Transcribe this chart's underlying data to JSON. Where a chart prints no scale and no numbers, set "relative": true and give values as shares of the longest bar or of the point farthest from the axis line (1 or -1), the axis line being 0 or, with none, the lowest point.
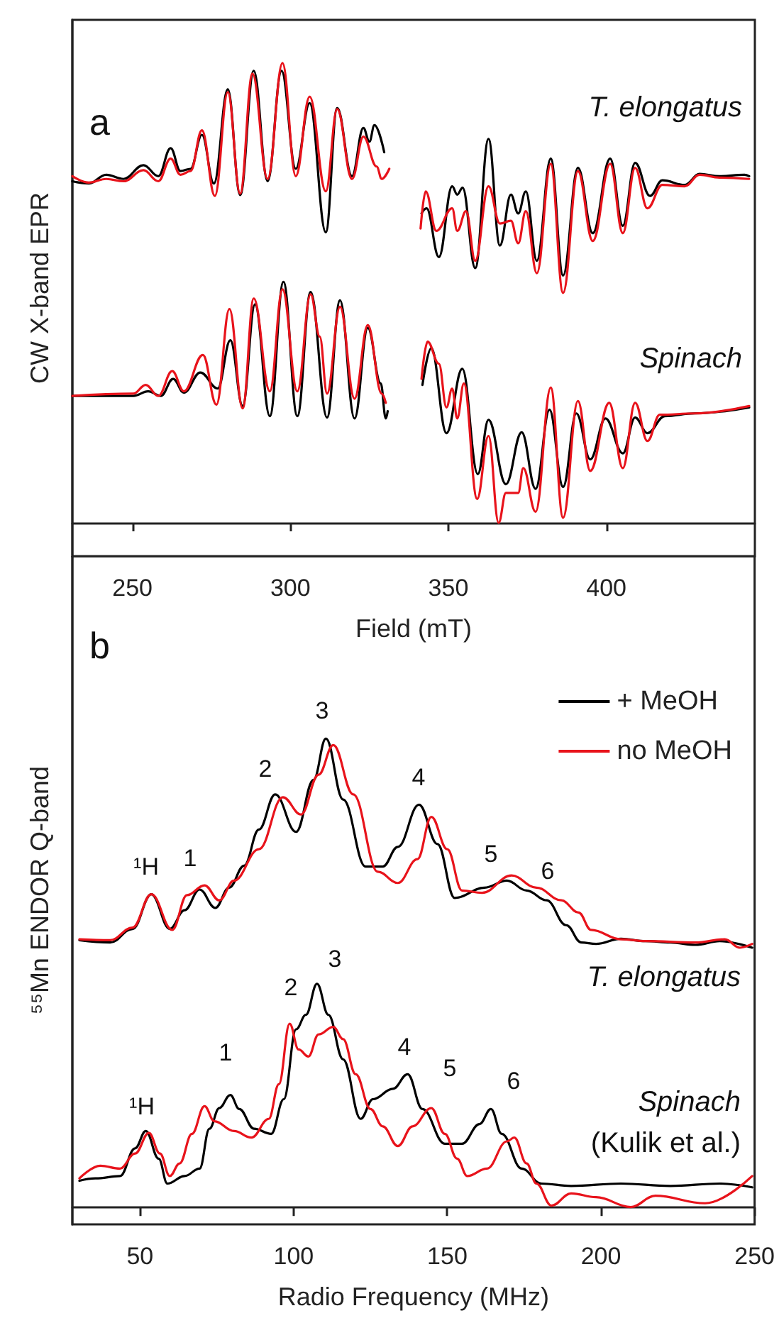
{
  "chart_data": [
    {
      "type": "line",
      "relative": true,
      "xlabel": "Field (mT)",
      "ylabel": "CW X-band EPR",
      "xlim": [
        231,
        447
      ],
      "xticks": [
        250,
        300,
        350,
        400
      ],
      "annotations": [
        "a",
        "T. elongatus",
        "Spinach"
      ],
      "series": [
        {
          "color": "#000000",
          "x": [
            231.0,
            236.2,
            241.7,
            247.2,
            253.5,
            258.2,
            262.1,
            265.2,
            268.4,
            272.0,
            275.8,
            280.2,
            284.1,
            288.4,
            292.8,
            297.2,
            301.7,
            306.1,
            311.2,
            314.8,
            319.5,
            323.1,
            325.0,
            326.6,
            329.7,
            336,
            341.5,
            343.1,
            347.0,
            351.2,
            352.8,
            354.5,
            358.5,
            362.7,
            366.3,
            369.8,
            372.1,
            374.5,
            378.0,
            382.4,
            386.3,
            391.0,
            395.7,
            401.2,
            405.2,
            409.1,
            413.8,
            417.7,
            424.8,
            429.5,
            435.8,
            443.7,
            445.2
          ],
          "values": [
            0.743,
            0.738,
            0.757,
            0.748,
            0.778,
            0.754,
            0.815,
            0.765,
            0.77,
            0.844,
            0.738,
            0.943,
            0.713,
            0.983,
            0.743,
            0.983,
            0.77,
            0.913,
            0.632,
            0.902,
            0.754,
            0.859,
            0.829,
            0.865,
            0.806,
            null,
            0.673,
            0.684,
            0.578,
            0.732,
            0.714,
            0.729,
            0.554,
            0.835,
            0.603,
            0.714,
            0.673,
            0.721,
            0.57,
            0.792,
            0.538,
            0.772,
            0.63,
            0.792,
            0.646,
            0.783,
            0.711,
            0.745,
            0.735,
            0.759,
            0.754,
            0.757,
            0.754
          ]
        },
        {
          "color": "#e8131b",
          "x": [
            231.0,
            236.2,
            241.7,
            247.2,
            253.5,
            258.2,
            262.1,
            265.2,
            268.4,
            272.0,
            276.1,
            280.2,
            284.1,
            288.0,
            292.8,
            297.5,
            301.7,
            306.1,
            311.2,
            314.8,
            319.5,
            323.1,
            327.3,
            328.9,
            331.3,
            336,
            341.2,
            342.8,
            346.2,
            351.2,
            352.8,
            355.6,
            358.5,
            362.7,
            366.3,
            369.8,
            372.1,
            374.5,
            378.0,
            382.4,
            386.3,
            391.0,
            395.7,
            401.2,
            405.2,
            409.1,
            413.0,
            417.7,
            424.8,
            429.5,
            435.8,
            445.2
          ],
          "values": [
            0.754,
            0.74,
            0.748,
            0.743,
            0.767,
            0.743,
            0.792,
            0.757,
            0.765,
            0.854,
            0.711,
            0.937,
            0.716,
            0.977,
            0.748,
            1.0,
            0.754,
            0.927,
            0.721,
            0.9,
            0.748,
            0.84,
            0.775,
            0.748,
            0.77,
            null,
            0.64,
            0.721,
            0.635,
            0.684,
            0.635,
            0.678,
            0.57,
            0.732,
            0.651,
            0.657,
            0.608,
            0.678,
            0.543,
            0.781,
            0.5,
            0.765,
            0.613,
            0.781,
            0.63,
            0.772,
            0.684,
            0.735,
            0.732,
            0.757,
            0.751,
            0.748
          ]
        },
        {
          "color": "#000000",
          "x": [
            231.0,
            250.3,
            255.0,
            259.0,
            262.9,
            266.3,
            271.5,
            277.0,
            281.0,
            284.9,
            288.8,
            293.5,
            297.8,
            302.2,
            306.4,
            311.6,
            315.7,
            320.3,
            324.5,
            328.6,
            330.2,
            330.8,
            336,
            341.8,
            344.6,
            349.4,
            354.4,
            359.3,
            362.7,
            368.2,
            373.2,
            377.6,
            382.0,
            386.3,
            390.5,
            394.9,
            399.7,
            405.2,
            409.1,
            413.0,
            418.5,
            428.0,
            445.2
          ],
          "values": [
            0.276,
            0.276,
            0.286,
            0.276,
            0.313,
            0.283,
            0.327,
            0.292,
            0.397,
            0.254,
            0.475,
            0.232,
            0.524,
            0.232,
            0.502,
            0.229,
            0.484,
            0.227,
            0.424,
            0.303,
            0.227,
            0.243,
            null,
            0.3,
            0.38,
            0.195,
            0.335,
            0.106,
            0.224,
            0.084,
            0.197,
            0.074,
            0.246,
            0.078,
            0.238,
            0.138,
            0.227,
            0.151,
            0.229,
            0.195,
            0.232,
            0.238,
            0.251
          ]
        },
        {
          "color": "#e8131b",
          "x": [
            231.0,
            250.3,
            254.2,
            258.2,
            262.6,
            266.3,
            272.3,
            276.6,
            280.7,
            284.9,
            288.4,
            293.5,
            297.5,
            302.2,
            306.4,
            309.3,
            311.6,
            315.7,
            320.3,
            324.5,
            328.9,
            330.2,
            336,
            341.5,
            343.4,
            347.0,
            349.4,
            351.2,
            352.8,
            354.9,
            359.1,
            362.7,
            365.9,
            368.2,
            372.1,
            373.7,
            377.6,
            382.4,
            386.3,
            391.0,
            394.9,
            400.9,
            405.2,
            409.1,
            413.0,
            416.9,
            428.0,
            445.2
          ],
          "values": [
            0.276,
            0.281,
            0.3,
            0.276,
            0.33,
            0.286,
            0.365,
            0.257,
            0.465,
            0.249,
            0.488,
            0.286,
            0.508,
            0.286,
            0.497,
            0.405,
            0.281,
            0.47,
            0.27,
            0.43,
            0.281,
            0.261,
            null,
            0.313,
            0.394,
            0.346,
            0.251,
            0.292,
            0.227,
            0.303,
            0.052,
            0.189,
            0.0,
            0.065,
            0.065,
            0.119,
            0.024,
            0.294,
            0.011,
            0.265,
            0.113,
            0.261,
            0.119,
            0.261,
            0.178,
            0.235,
            0.238,
            0.254
          ]
        }
      ]
    },
    {
      "type": "line",
      "relative": true,
      "xlabel": "Radio Frequency (MHz)",
      "ylabel": "⁵⁵Mn ENDOR Q-band",
      "xlim": [
        28,
        250
      ],
      "xticks": [
        50,
        100,
        150,
        200,
        250
      ],
      "legend": "top right",
      "annotations": [
        "b",
        "T. elongatus",
        "Spinach",
        "(Kulik et al.)",
        "¹H",
        "1",
        "2",
        "3",
        "4",
        "5",
        "6",
        "¹H",
        "1",
        "2",
        "3",
        "4",
        "5",
        "6"
      ],
      "series": [
        {
          "name": "+ MeOH",
          "color": "#000000",
          "x": [
            30.3,
            40.3,
            47.6,
            53.7,
            59.7,
            64.5,
            69.4,
            74.5,
            79.0,
            83.9,
            88.7,
            94.0,
            100.8,
            106.5,
            110.5,
            116.1,
            123.4,
            129.0,
            133.9,
            140.8,
            146.8,
            152.4,
            162.1,
            169.4,
            175.8,
            182.3,
            188.7,
            193.6,
            198.4,
            206.5,
            214.5,
            222.6,
            230.7,
            238.7,
            249.2
          ],
          "values": [
            0.57,
            0.565,
            0.594,
            0.668,
            0.594,
            0.634,
            0.678,
            0.639,
            0.682,
            0.729,
            0.806,
            0.881,
            0.801,
            0.912,
            1.0,
            0.87,
            0.727,
            0.727,
            0.769,
            0.859,
            0.775,
            0.66,
            0.682,
            0.697,
            0.676,
            0.655,
            0.602,
            0.565,
            0.562,
            0.573,
            0.568,
            0.565,
            0.56,
            0.568,
            0.554
          ]
        },
        {
          "name": "no MeOH",
          "color": "#e8131b",
          "x": [
            30.3,
            40.3,
            47.6,
            53.7,
            60.5,
            65.3,
            71.0,
            75.8,
            80.6,
            88.7,
            96.5,
            102.4,
            108.1,
            112.9,
            119.4,
            127.4,
            133.9,
            140.3,
            144.8,
            150.0,
            154.8,
            161.3,
            170.9,
            179.0,
            187.1,
            192.7,
            196.8,
            206.5,
            214.5,
            230.7,
            240.3,
            245.2,
            249.2
          ],
          "values": [
            0.572,
            0.57,
            0.597,
            0.668,
            0.592,
            0.666,
            0.687,
            0.655,
            0.697,
            0.764,
            0.875,
            0.838,
            0.923,
            0.986,
            0.881,
            0.716,
            0.692,
            0.743,
            0.833,
            0.764,
            0.676,
            0.671,
            0.708,
            0.682,
            0.655,
            0.629,
            0.592,
            0.572,
            0.568,
            0.565,
            0.572,
            0.554,
            0.562
          ]
        },
        {
          "color": "#000000",
          "x": [
            30.3,
            35.5,
            43.5,
            48.4,
            51.9,
            56.1,
            58.9,
            64.5,
            69.4,
            72.6,
            75.8,
            79.4,
            82.3,
            87.1,
            92.7,
            96.8,
            100.8,
            104.0,
            107.6,
            111.3,
            116.1,
            121.8,
            125.8,
            132.3,
            137.1,
            141.9,
            149.2,
            154.8,
            160.5,
            164.2,
            167.7,
            174.2,
            180.6,
            190.3,
            206.5,
            222.6,
            238.7,
            249.2
          ],
          "values": [
            0.057,
            0.062,
            0.067,
            0.126,
            0.163,
            0.104,
            0.051,
            0.067,
            0.083,
            0.168,
            0.212,
            0.24,
            0.21,
            0.168,
            0.157,
            0.231,
            0.38,
            0.411,
            0.477,
            0.411,
            0.316,
            0.189,
            0.231,
            0.253,
            0.284,
            0.21,
            0.136,
            0.136,
            0.178,
            0.21,
            0.157,
            0.083,
            0.051,
            0.046,
            0.051,
            0.046,
            0.051,
            0.043
          ]
        },
        {
          "color": "#e8131b",
          "x": [
            30.3,
            37.1,
            43.5,
            48.4,
            52.9,
            56.5,
            59.7,
            62.9,
            66.9,
            71.0,
            74.2,
            80.6,
            86.3,
            91.9,
            95.2,
            98.7,
            101.6,
            104.8,
            108.1,
            112.9,
            116.1,
            120.2,
            125.0,
            129.0,
            133.9,
            138.7,
            144.8,
            149.2,
            153.2,
            156.5,
            162.9,
            169.4,
            171.8,
            175.8,
            179.0,
            183.9,
            190.3,
            198.4,
            209.7,
            217.7,
            233.9,
            249.2
          ],
          "values": [
            0.062,
            0.089,
            0.083,
            0.115,
            0.159,
            0.115,
            0.067,
            0.094,
            0.157,
            0.216,
            0.184,
            0.163,
            0.149,
            0.189,
            0.263,
            0.392,
            0.337,
            0.322,
            0.369,
            0.385,
            0.359,
            0.284,
            0.21,
            0.173,
            0.131,
            0.173,
            0.212,
            0.157,
            0.104,
            0.067,
            0.083,
            0.141,
            0.149,
            0.094,
            0.051,
            0.004,
            0.03,
            0.022,
            0.001,
            0.025,
            0.009,
            0.067
          ]
        }
      ]
    }
  ]
}
